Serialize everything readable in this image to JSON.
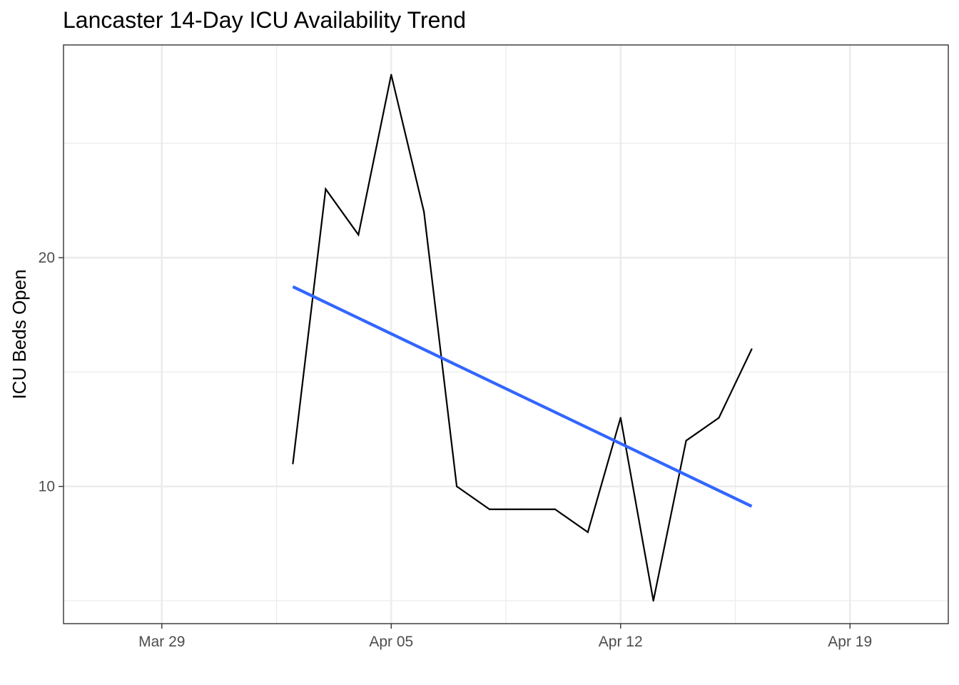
{
  "chart_data": {
    "type": "line",
    "title": "Lancaster 14-Day ICU Availability Trend",
    "xlabel": "",
    "ylabel": "ICU Beds Open",
    "x_tick_labels": [
      "Mar 29",
      "Apr 05",
      "Apr 12",
      "Apr 19"
    ],
    "x_ticks": [
      "2021-03-29",
      "2021-04-05",
      "2021-04-12",
      "2021-04-19"
    ],
    "y_ticks": [
      10,
      20
    ],
    "xlim": [
      "2021-03-26",
      "2021-04-22"
    ],
    "ylim": [
      4.0,
      29.3
    ],
    "grid": true,
    "series": [
      {
        "color": "#000000",
        "x": [
          "2021-04-02",
          "2021-04-03",
          "2021-04-04",
          "2021-04-05",
          "2021-04-06",
          "2021-04-07",
          "2021-04-08",
          "2021-04-09",
          "2021-04-10",
          "2021-04-11",
          "2021-04-12",
          "2021-04-13",
          "2021-04-14",
          "2021-04-15",
          "2021-04-16"
        ],
        "y": [
          11,
          23,
          21,
          28,
          22,
          10,
          9,
          9,
          9,
          8,
          13,
          5,
          12,
          13,
          16
        ]
      }
    ],
    "trend_line": {
      "color": "#3366FF",
      "x": [
        "2021-04-02",
        "2021-04-16"
      ],
      "y": [
        18.73,
        9.13
      ]
    }
  }
}
